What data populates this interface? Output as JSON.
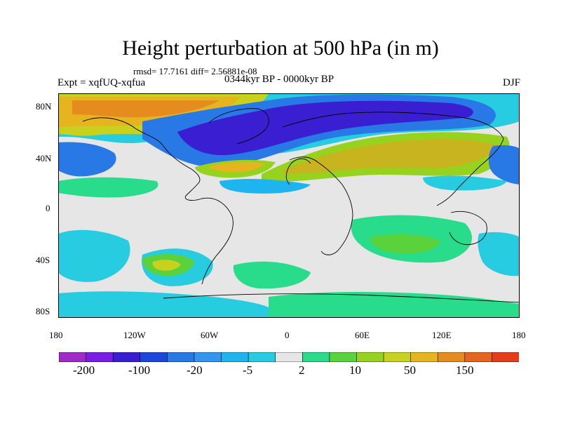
{
  "title": "Height perturbation at 500 hPa (in m)",
  "stats": "rmsd= 17.7161 diff= 2.56881e-08",
  "experiment": "Expt = xqfUQ-xqfua",
  "period": "0344kyr BP - 0000kyr BP",
  "season": "DJF",
  "map": {
    "lat_ticks": [
      "80N",
      "40N",
      "0",
      "40S",
      "80S"
    ],
    "lon_ticks": [
      "180",
      "120W",
      "60W",
      "0",
      "60E",
      "120E",
      "180"
    ]
  },
  "colorbar": {
    "labels": [
      "-200",
      "-100",
      "-20",
      "-5",
      "2",
      "10",
      "50",
      "150"
    ],
    "colors": [
      "#a02cc8",
      "#7a1ee6",
      "#3a1ed2",
      "#1e46dc",
      "#2878e6",
      "#3296f0",
      "#1eb4f0",
      "#28cce0",
      "#e6e6e6",
      "#28dc8c",
      "#5ad23c",
      "#96d21e",
      "#c8d21e",
      "#e6b41e",
      "#e68c1e",
      "#e6641e",
      "#e63c1e"
    ]
  },
  "legend_colors": {
    "ocean_neutral": "#e6e6e6",
    "strong_negative": "#2233c8",
    "positive": "#c8b41e"
  }
}
